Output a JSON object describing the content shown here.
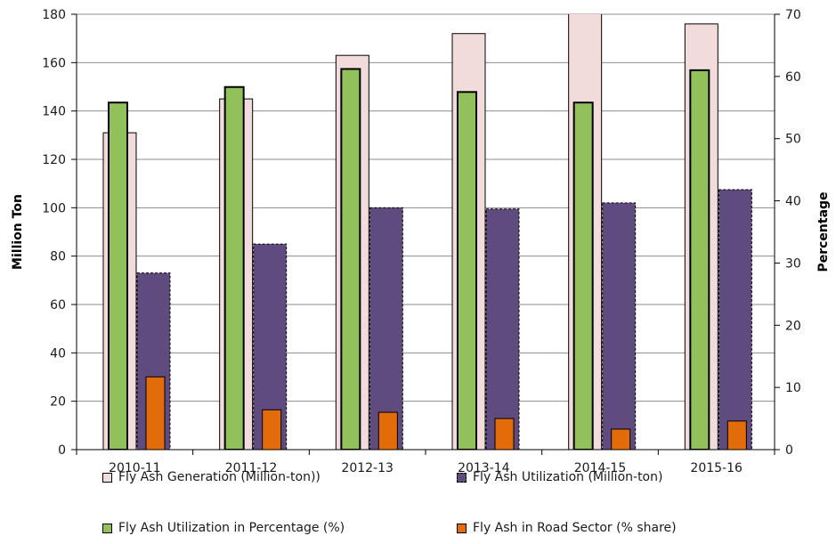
{
  "chart_data": {
    "type": "bar",
    "categories": [
      "2010-11",
      "2011-12",
      "2012-13",
      "2013-14",
      "2014-15",
      "2015-16"
    ],
    "series": [
      {
        "name": "Fly Ash Generation (Million-ton))",
        "axis": "left",
        "values": [
          131,
          145,
          163,
          172,
          184,
          176
        ],
        "color": "#f2dcdb",
        "stroke": "#000000"
      },
      {
        "name": "Fly Ash Utilization  (Million-ton)",
        "axis": "left",
        "values": [
          73,
          85,
          100,
          99.5,
          102,
          107.5
        ],
        "color": "#5f4b7e",
        "stroke": "#000000"
      },
      {
        "name": "Fly Ash Utilization  in Percentage (%)",
        "axis": "right",
        "values": [
          55.8,
          58.3,
          61.2,
          57.5,
          55.8,
          61.0
        ],
        "color": "#92c05a",
        "stroke": "#000000"
      },
      {
        "name": "Fly Ash in Road Sector (% share)",
        "axis": "right",
        "values": [
          11.7,
          6.4,
          6.0,
          5.0,
          3.3,
          4.6
        ],
        "color": "#e36c0a",
        "stroke": "#000000"
      }
    ],
    "ylabel": "Million Ton",
    "y2label": "Percentage",
    "ylim": [
      0,
      180
    ],
    "y2lim": [
      0,
      70
    ],
    "yticks": [
      0,
      20,
      40,
      60,
      80,
      100,
      120,
      140,
      160,
      180
    ],
    "y2ticks": [
      0,
      10,
      20,
      30,
      40,
      50,
      60,
      70
    ],
    "grid": true,
    "legend_position": "bottom"
  }
}
